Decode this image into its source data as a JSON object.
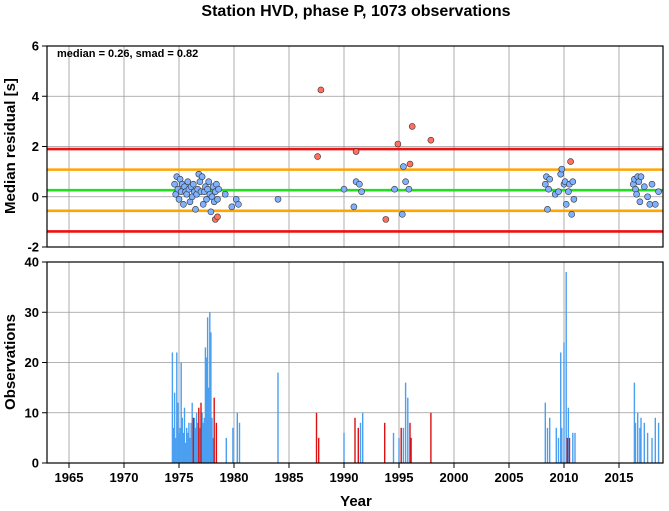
{
  "chart_data": [
    {
      "type": "scatter",
      "title": "Station HVD, phase P, 1073 observations",
      "ylabel": "Median residual [s]",
      "annotation": "median = 0.26, smad = 0.82",
      "xlim": [
        1963,
        2019
      ],
      "ylim": [
        -2,
        6
      ],
      "yticks": [
        -2,
        0,
        2,
        4,
        6
      ],
      "xticks": [
        1965,
        1970,
        1975,
        1980,
        1985,
        1990,
        1995,
        2000,
        2005,
        2010,
        2015
      ],
      "grid": true,
      "reference_lines": [
        {
          "name": "median",
          "y": 0.26,
          "color": "#22dd22"
        },
        {
          "name": "median - 1 smad",
          "y": -0.56,
          "color": "#ffa500"
        },
        {
          "name": "median + 1 smad",
          "y": 1.08,
          "color": "#ffa500"
        },
        {
          "name": "median - 2 smad",
          "y": -1.38,
          "color": "#ee1111"
        },
        {
          "name": "median + 2 smad",
          "y": 1.9,
          "color": "#ee1111"
        }
      ],
      "series": [
        {
          "color": "#7fb1ff",
          "points": [
            [
              1974.6,
              0.5
            ],
            [
              1974.7,
              0.1
            ],
            [
              1974.8,
              0.8
            ],
            [
              1974.9,
              0.3
            ],
            [
              1975.0,
              -0.1
            ],
            [
              1975.1,
              0.7
            ],
            [
              1975.2,
              0.2
            ],
            [
              1975.3,
              0.5
            ],
            [
              1975.4,
              -0.3
            ],
            [
              1975.5,
              0.4
            ],
            [
              1975.6,
              0.2
            ],
            [
              1975.7,
              0.1
            ],
            [
              1975.8,
              0.6
            ],
            [
              1975.9,
              0.3
            ],
            [
              1976.0,
              -0.2
            ],
            [
              1976.1,
              0.4
            ],
            [
              1976.2,
              0.0
            ],
            [
              1976.3,
              0.5
            ],
            [
              1976.4,
              0.2
            ],
            [
              1976.5,
              -0.5
            ],
            [
              1976.6,
              0.1
            ],
            [
              1976.7,
              0.3
            ],
            [
              1976.8,
              0.9
            ],
            [
              1976.9,
              0.6
            ],
            [
              1977.0,
              0.2
            ],
            [
              1977.1,
              0.8
            ],
            [
              1977.2,
              -0.3
            ],
            [
              1977.3,
              0.2
            ],
            [
              1977.4,
              0.4
            ],
            [
              1977.5,
              -0.1
            ],
            [
              1977.6,
              0.3
            ],
            [
              1977.7,
              0.6
            ],
            [
              1977.8,
              0.1
            ],
            [
              1977.9,
              -0.6
            ],
            [
              1978.0,
              0.0
            ],
            [
              1978.1,
              0.4
            ],
            [
              1978.2,
              -0.2
            ],
            [
              1978.3,
              0.2
            ],
            [
              1978.4,
              0.5
            ],
            [
              1978.5,
              -0.1
            ],
            [
              1978.6,
              0.3
            ],
            [
              1979.2,
              0.1
            ],
            [
              1979.8,
              -0.4
            ],
            [
              1980.2,
              -0.1
            ],
            [
              1980.4,
              -0.3
            ],
            [
              1984.0,
              -0.1
            ],
            [
              1990.0,
              0.3
            ],
            [
              1990.9,
              -0.4
            ],
            [
              1991.1,
              0.6
            ],
            [
              1991.4,
              0.5
            ],
            [
              1991.6,
              0.2
            ],
            [
              1994.6,
              0.3
            ],
            [
              1995.3,
              -0.7
            ],
            [
              1995.4,
              1.2
            ],
            [
              1995.6,
              0.6
            ],
            [
              1995.9,
              0.3
            ],
            [
              2008.3,
              0.5
            ],
            [
              2008.4,
              0.8
            ],
            [
              2008.5,
              -0.5
            ],
            [
              2008.6,
              0.3
            ],
            [
              2008.7,
              0.7
            ],
            [
              2009.2,
              0.1
            ],
            [
              2009.5,
              0.2
            ],
            [
              2009.7,
              0.9
            ],
            [
              2009.8,
              1.1
            ],
            [
              2010.0,
              0.5
            ],
            [
              2010.1,
              0.6
            ],
            [
              2010.2,
              -0.3
            ],
            [
              2010.4,
              0.2
            ],
            [
              2010.5,
              0.5
            ],
            [
              2010.7,
              -0.7
            ],
            [
              2010.8,
              0.6
            ],
            [
              2010.9,
              -0.1
            ],
            [
              2016.3,
              0.5
            ],
            [
              2016.4,
              0.7
            ],
            [
              2016.5,
              0.3
            ],
            [
              2016.6,
              0.1
            ],
            [
              2016.7,
              0.8
            ],
            [
              2016.8,
              0.6
            ],
            [
              2016.9,
              -0.2
            ],
            [
              2017.0,
              0.8
            ],
            [
              2017.3,
              0.4
            ],
            [
              2017.6,
              0.0
            ],
            [
              2017.8,
              -0.3
            ],
            [
              2018.0,
              0.5
            ],
            [
              2018.3,
              -0.3
            ],
            [
              2018.6,
              0.2
            ]
          ]
        },
        {
          "color": "#ff7060",
          "points": [
            [
              1978.3,
              -0.9
            ],
            [
              1978.5,
              -0.8
            ],
            [
              1987.6,
              1.6
            ],
            [
              1987.9,
              4.25
            ],
            [
              1991.1,
              1.8
            ],
            [
              1993.8,
              -0.9
            ],
            [
              1994.9,
              2.1
            ],
            [
              1996.0,
              1.3
            ],
            [
              1996.2,
              2.8
            ],
            [
              1997.9,
              2.25
            ],
            [
              2010.6,
              1.4
            ]
          ]
        }
      ]
    },
    {
      "type": "bar",
      "ylabel": "Observations",
      "xlabel": "Year",
      "xlim": [
        1963,
        2019
      ],
      "ylim": [
        0,
        40
      ],
      "yticks": [
        0,
        10,
        20,
        30,
        40
      ],
      "xticks": [
        1965,
        1970,
        1975,
        1980,
        1985,
        1990,
        1995,
        2000,
        2005,
        2010,
        2015
      ],
      "grid": true,
      "series": [
        {
          "color": "#4b9ff0",
          "bars": [
            [
              1974.4,
              22
            ],
            [
              1974.5,
              7
            ],
            [
              1974.6,
              14
            ],
            [
              1974.7,
              5
            ],
            [
              1974.8,
              22
            ],
            [
              1974.9,
              12
            ],
            [
              1975.0,
              6
            ],
            [
              1975.1,
              7
            ],
            [
              1975.2,
              20
            ],
            [
              1975.3,
              9
            ],
            [
              1975.4,
              6
            ],
            [
              1975.5,
              11
            ],
            [
              1975.6,
              4
            ],
            [
              1975.7,
              7
            ],
            [
              1975.8,
              6
            ],
            [
              1975.9,
              8
            ],
            [
              1976.0,
              5
            ],
            [
              1976.1,
              8
            ],
            [
              1976.2,
              12
            ],
            [
              1976.3,
              6
            ],
            [
              1976.4,
              9
            ],
            [
              1976.5,
              7
            ],
            [
              1976.6,
              10
            ],
            [
              1976.7,
              8
            ],
            [
              1976.8,
              6
            ],
            [
              1976.9,
              7
            ],
            [
              1977.0,
              5
            ],
            [
              1977.1,
              10
            ],
            [
              1977.2,
              8
            ],
            [
              1977.3,
              9
            ],
            [
              1977.4,
              23
            ],
            [
              1977.5,
              21
            ],
            [
              1977.6,
              29
            ],
            [
              1977.7,
              15
            ],
            [
              1977.8,
              30
            ],
            [
              1977.9,
              26
            ],
            [
              1978.0,
              9
            ],
            [
              1978.1,
              5
            ],
            [
              1979.3,
              5
            ],
            [
              1979.9,
              7
            ],
            [
              1980.3,
              10
            ],
            [
              1980.5,
              8
            ],
            [
              1984.0,
              18
            ],
            [
              1990.0,
              6
            ],
            [
              1991.5,
              8
            ],
            [
              1991.7,
              10
            ],
            [
              1994.5,
              6
            ],
            [
              1995.0,
              5
            ],
            [
              1995.4,
              7
            ],
            [
              1995.6,
              16
            ],
            [
              1995.8,
              13
            ],
            [
              2008.3,
              12
            ],
            [
              2008.5,
              7
            ],
            [
              2008.7,
              9
            ],
            [
              2009.3,
              7
            ],
            [
              2009.5,
              5
            ],
            [
              2009.7,
              22
            ],
            [
              2009.8,
              7
            ],
            [
              2010.0,
              24
            ],
            [
              2010.2,
              38
            ],
            [
              2010.4,
              11
            ],
            [
              2010.8,
              6
            ],
            [
              2011.0,
              6
            ],
            [
              2016.4,
              16
            ],
            [
              2016.5,
              8
            ],
            [
              2016.7,
              10
            ],
            [
              2016.9,
              7
            ],
            [
              2017.0,
              9
            ],
            [
              2017.3,
              8
            ],
            [
              2017.6,
              6
            ],
            [
              2018.0,
              5
            ],
            [
              2018.3,
              9
            ],
            [
              2018.6,
              8
            ]
          ]
        },
        {
          "color": "#dd1111",
          "bars": [
            [
              1976.3,
              9
            ],
            [
              1976.8,
              11
            ],
            [
              1977.0,
              12
            ],
            [
              1978.2,
              13
            ],
            [
              1978.4,
              8
            ],
            [
              1987.5,
              10
            ],
            [
              1987.7,
              5
            ],
            [
              1991.0,
              9
            ],
            [
              1991.3,
              7
            ],
            [
              1993.7,
              8
            ],
            [
              1995.2,
              7
            ],
            [
              1996.0,
              8
            ],
            [
              1996.1,
              5
            ],
            [
              1997.9,
              10
            ],
            [
              2010.3,
              5
            ],
            [
              2010.5,
              5
            ]
          ]
        }
      ]
    }
  ]
}
